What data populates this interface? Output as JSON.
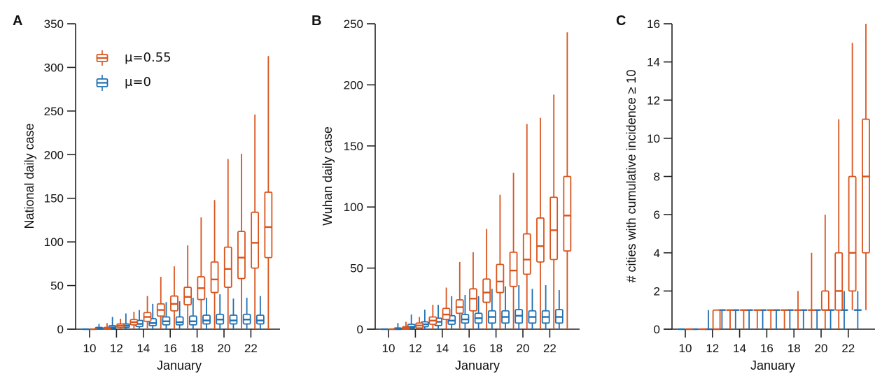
{
  "colors": {
    "orange": "#d9541e",
    "blue": "#1f6fb2"
  },
  "legend": [
    {
      "label": "μ=0.55",
      "color_key": "orange"
    },
    {
      "label": "μ=0",
      "color_key": "blue"
    }
  ],
  "chart_data": [
    {
      "type": "box",
      "panel": "A",
      "title": "",
      "xlabel": "January",
      "ylabel": "National daily case",
      "ylim": [
        0,
        350
      ],
      "yticks": [
        0,
        50,
        100,
        150,
        200,
        250,
        300,
        350
      ],
      "xticks": [
        10,
        12,
        14,
        16,
        18,
        20,
        22
      ],
      "xlim": [
        9,
        24
      ],
      "legend_position": "top-left",
      "categories": [
        10,
        11,
        12,
        13,
        14,
        15,
        16,
        17,
        18,
        19,
        20,
        21,
        22,
        23
      ],
      "series": [
        {
          "name": "μ=0",
          "color_key": "blue",
          "boxes": [
            [
              0,
              0,
              0,
              0,
              0
            ],
            [
              0,
              0,
              1,
              2,
              6
            ],
            [
              0,
              1,
              2,
              4,
              14
            ],
            [
              0,
              2,
              4,
              6,
              18
            ],
            [
              0,
              3,
              6,
              10,
              22
            ],
            [
              0,
              4,
              7,
              12,
              29
            ],
            [
              0,
              5,
              9,
              14,
              31
            ],
            [
              0,
              5,
              8,
              14,
              32
            ],
            [
              0,
              5,
              9,
              15,
              36
            ],
            [
              0,
              6,
              10,
              16,
              36
            ],
            [
              0,
              6,
              11,
              17,
              40
            ],
            [
              0,
              6,
              10,
              16,
              35
            ],
            [
              0,
              6,
              11,
              17,
              36
            ],
            [
              0,
              6,
              10,
              16,
              38
            ]
          ]
        },
        {
          "name": "μ=0.55",
          "color_key": "orange",
          "boxes": [
            [
              0,
              0,
              0,
              0,
              0
            ],
            [
              0,
              0,
              1,
              2,
              7
            ],
            [
              0,
              2,
              4,
              6,
              12
            ],
            [
              0,
              5,
              8,
              11,
              20
            ],
            [
              0,
              9,
              14,
              19,
              38
            ],
            [
              0,
              15,
              22,
              29,
              60
            ],
            [
              0,
              21,
              29,
              38,
              72
            ],
            [
              0,
              28,
              37,
              48,
              96
            ],
            [
              0,
              34,
              47,
              60,
              128
            ],
            [
              0,
              42,
              57,
              77,
              148
            ],
            [
              0,
              48,
              69,
              94,
              195
            ],
            [
              0,
              58,
              82,
              112,
              201
            ],
            [
              0,
              70,
              99,
              134,
              246
            ],
            [
              0,
              82,
              117,
              157,
              313
            ]
          ]
        }
      ]
    },
    {
      "type": "box",
      "panel": "B",
      "title": "",
      "xlabel": "January",
      "ylabel": "Wuhan daily case",
      "ylim": [
        0,
        250
      ],
      "yticks": [
        0,
        50,
        100,
        150,
        200,
        250
      ],
      "xticks": [
        10,
        12,
        14,
        16,
        18,
        20,
        22
      ],
      "xlim": [
        9,
        24
      ],
      "categories": [
        10,
        11,
        12,
        13,
        14,
        15,
        16,
        17,
        18,
        19,
        20,
        21,
        22,
        23
      ],
      "series": [
        {
          "name": "μ=0",
          "color_key": "blue",
          "boxes": [
            [
              0,
              0,
              0,
              0,
              0
            ],
            [
              0,
              0,
              0,
              1,
              5
            ],
            [
              0,
              1,
              2,
              4,
              12
            ],
            [
              0,
              2,
              4,
              6,
              16
            ],
            [
              0,
              3,
              6,
              9,
              20
            ],
            [
              0,
              4,
              7,
              11,
              27
            ],
            [
              0,
              5,
              8,
              12,
              28
            ],
            [
              0,
              5,
              9,
              13,
              27
            ],
            [
              0,
              5,
              10,
              15,
              33
            ],
            [
              0,
              5,
              10,
              15,
              35
            ],
            [
              0,
              5,
              11,
              16,
              36
            ],
            [
              0,
              5,
              10,
              15,
              33
            ],
            [
              0,
              5,
              10,
              15,
              36
            ],
            [
              0,
              5,
              10,
              16,
              32
            ]
          ]
        },
        {
          "name": "μ=0.55",
          "color_key": "orange",
          "boxes": [
            [
              0,
              0,
              0,
              0,
              0
            ],
            [
              0,
              0,
              1,
              2,
              6
            ],
            [
              0,
              1,
              3,
              5,
              10
            ],
            [
              0,
              4,
              7,
              10,
              20
            ],
            [
              0,
              8,
              12,
              17,
              34
            ],
            [
              0,
              13,
              18,
              24,
              55
            ],
            [
              0,
              15,
              25,
              33,
              63
            ],
            [
              0,
              22,
              30,
              41,
              82
            ],
            [
              0,
              30,
              39,
              53,
              110
            ],
            [
              0,
              35,
              48,
              63,
              128
            ],
            [
              0,
              45,
              57,
              78,
              168
            ],
            [
              0,
              55,
              68,
              91,
              173
            ],
            [
              0,
              57,
              81,
              108,
              192
            ],
            [
              0,
              64,
              93,
              125,
              243
            ]
          ]
        }
      ]
    },
    {
      "type": "box",
      "panel": "C",
      "title": "",
      "xlabel": "January",
      "ylabel": "# cities with cumulative incidence ≥ 10",
      "ylim": [
        0,
        16
      ],
      "yticks": [
        0,
        2,
        4,
        6,
        8,
        10,
        12,
        14,
        16
      ],
      "xticks": [
        10,
        12,
        14,
        16,
        18,
        20,
        22
      ],
      "xlim": [
        9,
        24
      ],
      "categories": [
        10,
        11,
        12,
        13,
        14,
        15,
        16,
        17,
        18,
        19,
        20,
        21,
        22,
        23
      ],
      "series": [
        {
          "name": "μ=0",
          "color_key": "blue",
          "boxes": [
            [
              0,
              0,
              0,
              0,
              0
            ],
            [
              0,
              0,
              0,
              0,
              0
            ],
            [
              0,
              0,
              0,
              0,
              1
            ],
            [
              0,
              1,
              1,
              1,
              1
            ],
            [
              0,
              1,
              1,
              1,
              1
            ],
            [
              0,
              1,
              1,
              1,
              1
            ],
            [
              0,
              1,
              1,
              1,
              1
            ],
            [
              0,
              1,
              1,
              1,
              1
            ],
            [
              0,
              1,
              1,
              1,
              1
            ],
            [
              0,
              1,
              1,
              1,
              1
            ],
            [
              0,
              1,
              1,
              1,
              1
            ],
            [
              0,
              1,
              1,
              1,
              1
            ],
            [
              0,
              1,
              1,
              1,
              2
            ],
            [
              0,
              1,
              1,
              1,
              2
            ]
          ]
        },
        {
          "name": "μ=0.55",
          "color_key": "orange",
          "boxes": [
            [
              0,
              0,
              0,
              0,
              0
            ],
            [
              0,
              0,
              0,
              0,
              0
            ],
            [
              0,
              0,
              0,
              1,
              1
            ],
            [
              0,
              1,
              1,
              1,
              1
            ],
            [
              0,
              1,
              1,
              1,
              1
            ],
            [
              0,
              1,
              1,
              1,
              1
            ],
            [
              0,
              1,
              1,
              1,
              1
            ],
            [
              0,
              1,
              1,
              1,
              1
            ],
            [
              0,
              1,
              1,
              1,
              2
            ],
            [
              0,
              1,
              1,
              1,
              4
            ],
            [
              0,
              1,
              1,
              2,
              6
            ],
            [
              0,
              1,
              2,
              4,
              11
            ],
            [
              1,
              2,
              4,
              8,
              15
            ],
            [
              1,
              4,
              8,
              11,
              16
            ]
          ]
        }
      ]
    }
  ]
}
